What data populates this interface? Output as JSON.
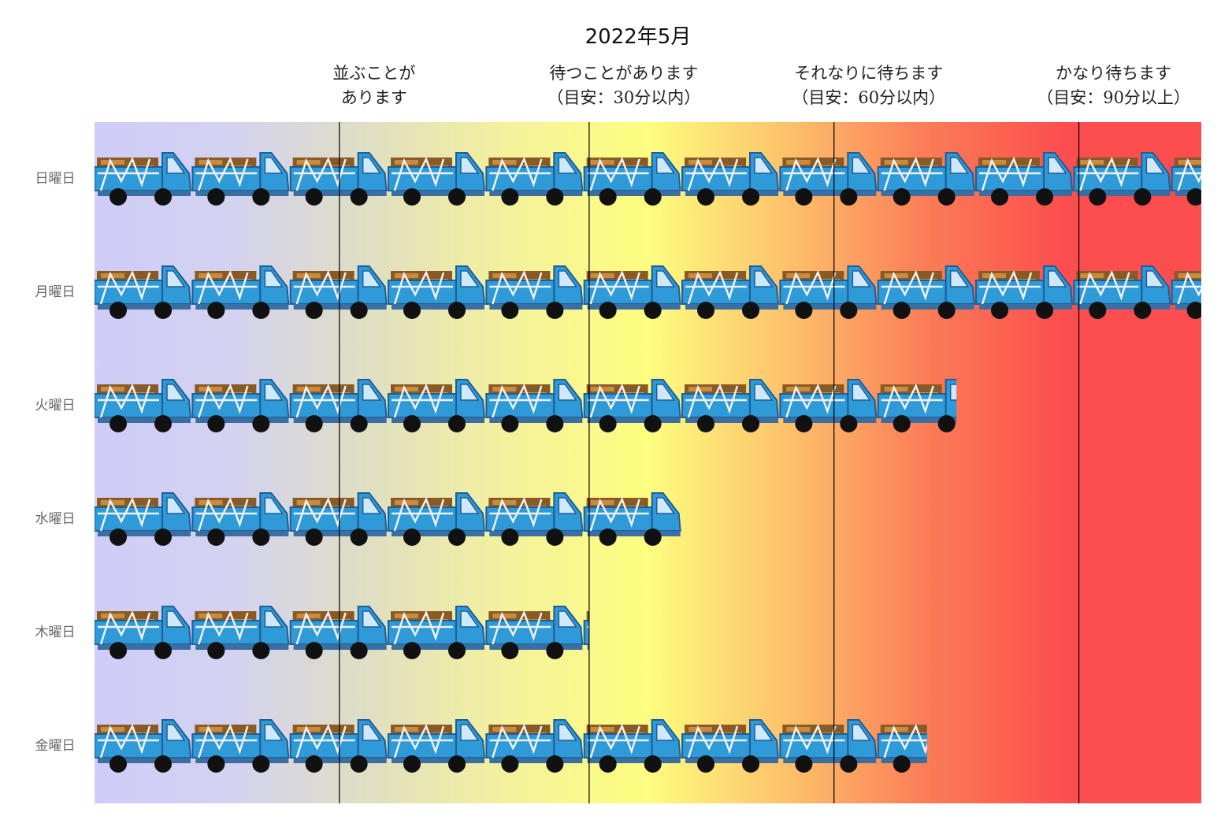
{
  "chart_data": {
    "type": "bar",
    "title": "2022年5月",
    "categories": [
      "日曜日",
      "月曜日",
      "火曜日",
      "水曜日",
      "木曜日",
      "金曜日"
    ],
    "values": [
      11.3,
      11.3,
      8.8,
      6.0,
      5.05,
      8.5
    ],
    "unit_note": "bar length measured in truck icons",
    "xlim": [
      0,
      11.3
    ],
    "zones": [
      {
        "label_lines": [
          "並ぶことが",
          "あります"
        ],
        "threshold": 2.5
      },
      {
        "label_lines": [
          "待つことがあります",
          "（目安：30分以内）"
        ],
        "threshold": 5.05
      },
      {
        "label_lines": [
          "それなりに待ちます",
          "（目安：60分以内）"
        ],
        "threshold": 7.55
      },
      {
        "label_lines": [
          "かなり待ちます",
          "（目安：90分以上）"
        ],
        "threshold": 10.05
      }
    ],
    "background_gradient": [
      "#cfcdf9",
      "#d3d2f0",
      "#e0dfc2",
      "#f4f29c",
      "#fdfd80",
      "#fdc26b",
      "#fb7d57",
      "#fc4e4e",
      "#fc4e4e"
    ],
    "grid": false,
    "legend": "none"
  },
  "colors": {
    "truck_body": "#2e9ad8",
    "truck_outline": "#1f5d95",
    "truck_stripe": "#3a6fa3",
    "window": "#cfe8fb",
    "cargo": "#8a5a24",
    "cargo_light": "#c98c3f",
    "rope": "#f0f0f0",
    "wheel": "#111111"
  },
  "icon": "dump-truck-icon"
}
